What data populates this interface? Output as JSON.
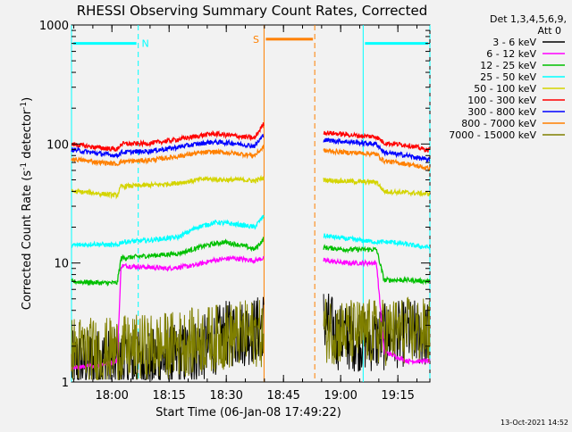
{
  "chart_data": {
    "type": "line",
    "title": "RHESSI Observing Summary Count Rates, Corrected",
    "xlabel": "Start Time (06-Jan-08 17:49:22)",
    "ylabel": "Corrected Count Rate (s⁻¹ detector⁻¹)",
    "ylabel_main": "Corrected Count Rate (s",
    "ylabel_sup1": "-1",
    "ylabel_mid": " detector",
    "ylabel_sup2": "-1",
    "ylabel_end": ")",
    "yscale": "log",
    "ylim": [
      1,
      1000
    ],
    "xlim_minutes": [
      0,
      94
    ],
    "x_ticks": [
      {
        "label": "18:00",
        "minute": 10.6
      },
      {
        "label": "18:15",
        "minute": 25.6
      },
      {
        "label": "18:30",
        "minute": 40.6
      },
      {
        "label": "18:45",
        "minute": 55.6
      },
      {
        "label": "19:00",
        "minute": 70.6
      },
      {
        "label": "19:15",
        "minute": 85.6
      }
    ],
    "y_ticks": [
      {
        "label": "1",
        "value": 1
      },
      {
        "label": "10",
        "value": 10
      },
      {
        "label": "100",
        "value": 100
      },
      {
        "label": "1000",
        "value": 1000
      }
    ],
    "legend": {
      "header_line1": "Det 1,3,4,5,6,9,",
      "header_line2": "Att 0",
      "placement": "right"
    },
    "flags": [
      {
        "label": "N",
        "color": "#00ffff",
        "start": 0,
        "end": 17.5,
        "level": 700
      },
      {
        "label": "S",
        "color": "#ff8000",
        "start": 50.5,
        "end": 63.8,
        "level": 760
      },
      {
        "label": "",
        "color": "#00ffff",
        "start": 76.5,
        "end": 94,
        "level": 700
      }
    ],
    "vlines": [
      {
        "minute": 0,
        "color": "#00ffff",
        "dashed": false
      },
      {
        "minute": 17.5,
        "color": "#00ffff",
        "dashed": true
      },
      {
        "minute": 50.5,
        "color": "#ff8000",
        "dashed": false
      },
      {
        "minute": 63.8,
        "color": "#ff8000",
        "dashed": true
      },
      {
        "minute": 76.5,
        "color": "#00ffff",
        "dashed": false
      },
      {
        "minute": 94,
        "color": "#00ffff",
        "dashed": true
      }
    ],
    "gap_minutes": [
      50.5,
      66.0
    ],
    "series": [
      {
        "name": "3 - 6 keV",
        "color": "#000000",
        "points": [
          [
            0,
            1.4
          ],
          [
            8,
            1.5
          ],
          [
            16,
            1.4
          ],
          [
            28,
            1.6
          ],
          [
            36,
            2.0
          ],
          [
            40,
            2.5
          ],
          [
            46,
            2.6
          ],
          [
            49,
            2.8
          ],
          [
            50.5,
            3.2
          ],
          [
            66,
            3.4
          ],
          [
            70,
            2.4
          ],
          [
            80,
            2.3
          ],
          [
            88,
            2.6
          ],
          [
            94,
            2.5
          ]
        ]
      },
      {
        "name": "6 - 12 keV",
        "color": "#ff00ff",
        "points": [
          [
            0,
            1.3
          ],
          [
            8,
            1.4
          ],
          [
            12,
            1.5
          ],
          [
            13,
            9.5
          ],
          [
            18,
            9.3
          ],
          [
            25,
            9.0
          ],
          [
            32,
            9.5
          ],
          [
            37,
            10.5
          ],
          [
            42,
            11
          ],
          [
            48,
            10.5
          ],
          [
            50.5,
            11
          ],
          [
            66,
            10.5
          ],
          [
            72,
            10
          ],
          [
            80,
            10
          ],
          [
            82,
            1.8
          ],
          [
            88,
            1.5
          ],
          [
            94,
            1.5
          ]
        ]
      },
      {
        "name": "12 - 25 keV",
        "color": "#00c000",
        "points": [
          [
            0,
            7.0
          ],
          [
            8,
            6.8
          ],
          [
            12,
            6.8
          ],
          [
            13,
            11
          ],
          [
            20,
            11.5
          ],
          [
            28,
            12
          ],
          [
            35,
            14
          ],
          [
            40,
            15
          ],
          [
            45,
            14
          ],
          [
            48,
            13
          ],
          [
            50.5,
            16
          ],
          [
            66,
            13.5
          ],
          [
            72,
            13
          ],
          [
            80,
            13
          ],
          [
            82,
            7.2
          ],
          [
            88,
            7.2
          ],
          [
            94,
            7.0
          ]
        ]
      },
      {
        "name": "25 - 50 keV",
        "color": "#00ffff",
        "points": [
          [
            0,
            14
          ],
          [
            6,
            14.5
          ],
          [
            12,
            14
          ],
          [
            13,
            15
          ],
          [
            20,
            15.5
          ],
          [
            28,
            16.5
          ],
          [
            33,
            20
          ],
          [
            38,
            22
          ],
          [
            44,
            21
          ],
          [
            48,
            20
          ],
          [
            50.5,
            25
          ],
          [
            66,
            17
          ],
          [
            72,
            16
          ],
          [
            80,
            15
          ],
          [
            84,
            15
          ],
          [
            90,
            14
          ],
          [
            94,
            13.5
          ]
        ]
      },
      {
        "name": "50 - 100 keV",
        "color": "#d4d400",
        "points": [
          [
            0,
            40
          ],
          [
            5,
            39
          ],
          [
            12,
            37
          ],
          [
            13,
            44
          ],
          [
            20,
            45
          ],
          [
            25,
            46
          ],
          [
            30,
            48
          ],
          [
            35,
            51
          ],
          [
            40,
            50
          ],
          [
            45,
            50
          ],
          [
            48,
            49
          ],
          [
            50.5,
            52
          ],
          [
            66,
            50
          ],
          [
            70,
            49
          ],
          [
            76,
            48
          ],
          [
            80,
            48
          ],
          [
            82,
            40
          ],
          [
            88,
            39
          ],
          [
            94,
            38
          ]
        ]
      },
      {
        "name": "100 - 300 keV",
        "color": "#ff0000",
        "points": [
          [
            0,
            100
          ],
          [
            6,
            94
          ],
          [
            12,
            90
          ],
          [
            13,
            100
          ],
          [
            20,
            101
          ],
          [
            26,
            107
          ],
          [
            32,
            115
          ],
          [
            37,
            122
          ],
          [
            42,
            118
          ],
          [
            48,
            112
          ],
          [
            50.5,
            150
          ],
          [
            66,
            125
          ],
          [
            72,
            120
          ],
          [
            76,
            117
          ],
          [
            80,
            115
          ],
          [
            82,
            102
          ],
          [
            88,
            98
          ],
          [
            94,
            88
          ]
        ]
      },
      {
        "name": "300 - 800 keV",
        "color": "#0000ff",
        "points": [
          [
            0,
            90
          ],
          [
            6,
            84
          ],
          [
            12,
            80
          ],
          [
            13,
            85
          ],
          [
            20,
            87
          ],
          [
            26,
            92
          ],
          [
            32,
            99
          ],
          [
            37,
            104
          ],
          [
            42,
            102
          ],
          [
            48,
            96
          ],
          [
            50.5,
            120
          ],
          [
            66,
            108
          ],
          [
            72,
            105
          ],
          [
            76,
            102
          ],
          [
            80,
            100
          ],
          [
            82,
            85
          ],
          [
            88,
            80
          ],
          [
            94,
            73
          ]
        ]
      },
      {
        "name": "800 - 7000 keV",
        "color": "#ff8000",
        "points": [
          [
            0,
            75
          ],
          [
            6,
            71
          ],
          [
            12,
            68
          ],
          [
            13,
            71
          ],
          [
            20,
            73
          ],
          [
            26,
            77
          ],
          [
            32,
            83
          ],
          [
            37,
            86
          ],
          [
            42,
            84
          ],
          [
            48,
            80
          ],
          [
            50.5,
            95
          ],
          [
            66,
            88
          ],
          [
            72,
            85
          ],
          [
            76,
            84
          ],
          [
            80,
            82
          ],
          [
            82,
            72
          ],
          [
            88,
            68
          ],
          [
            94,
            62
          ]
        ]
      },
      {
        "name": "7000 - 15000 keV",
        "color": "#808000",
        "points": [
          [
            0,
            1.9
          ],
          [
            8,
            1.8
          ],
          [
            16,
            1.9
          ],
          [
            24,
            2.0
          ],
          [
            32,
            2.2
          ],
          [
            40,
            2.4
          ],
          [
            48,
            2.6
          ],
          [
            50.5,
            2.5
          ],
          [
            66,
            2.8
          ],
          [
            72,
            2.6
          ],
          [
            80,
            2.6
          ],
          [
            88,
            2.7
          ],
          [
            94,
            2.6
          ]
        ]
      }
    ]
  },
  "footer": {
    "timestamp": "13-Oct-2021 14:52"
  }
}
